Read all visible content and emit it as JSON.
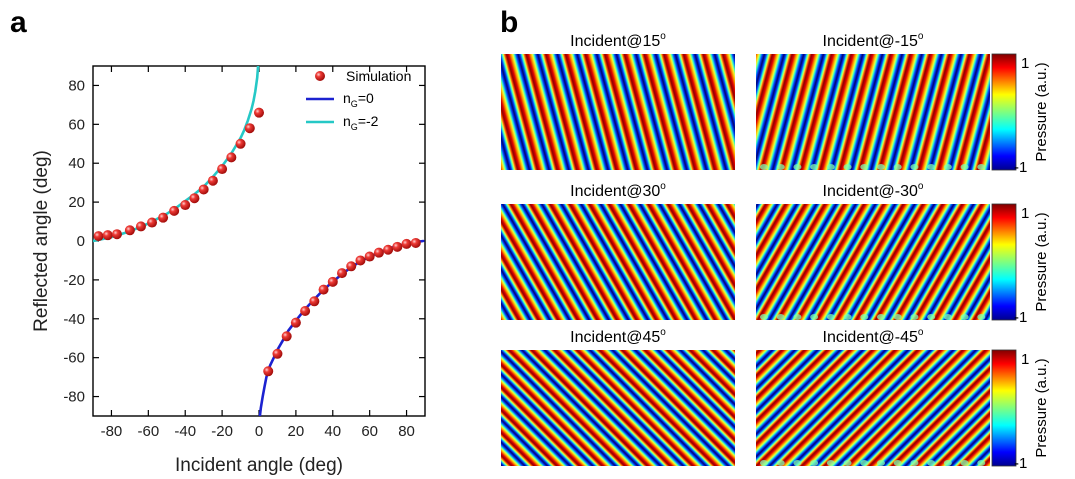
{
  "panel_a": {
    "letter": "a"
  },
  "panel_b": {
    "letter": "b"
  },
  "chart_data": [
    {
      "type": "scatter",
      "panel": "a",
      "xlabel": "Incident angle (deg)",
      "ylabel": "Reflected angle (deg)",
      "xlim": [
        -90,
        90
      ],
      "ylim": [
        -90,
        90
      ],
      "xticks": [
        -80,
        -60,
        -40,
        -20,
        0,
        20,
        40,
        60,
        80
      ],
      "yticks": [
        -80,
        -60,
        -40,
        -20,
        0,
        20,
        40,
        60,
        80
      ],
      "legend_position": "top-right",
      "legend": {
        "simulation": "Simulation",
        "n0_main": "n",
        "n0_sub": "G",
        "n0_tail": "=0",
        "nm2_main": "n",
        "nm2_sub": "G",
        "nm2_tail": "=-2"
      },
      "colors": {
        "simulation": "#e0201f",
        "ng0": "#1c22d0",
        "ngm2": "#25c8c6"
      },
      "simulation_points": [
        {
          "x": -87,
          "y": 2.5
        },
        {
          "x": -82,
          "y": 3
        },
        {
          "x": -77,
          "y": 3.5
        },
        {
          "x": -70,
          "y": 5.5
        },
        {
          "x": -64,
          "y": 7.5
        },
        {
          "x": -58,
          "y": 9.5
        },
        {
          "x": -52,
          "y": 12
        },
        {
          "x": -46,
          "y": 15.5
        },
        {
          "x": -40,
          "y": 18.5
        },
        {
          "x": -35,
          "y": 22
        },
        {
          "x": -30,
          "y": 26.5
        },
        {
          "x": -25,
          "y": 31
        },
        {
          "x": -20,
          "y": 37
        },
        {
          "x": -15,
          "y": 43
        },
        {
          "x": -10,
          "y": 50
        },
        {
          "x": -5,
          "y": 58
        },
        {
          "x": 0,
          "y": 66
        },
        {
          "x": 5,
          "y": -67
        },
        {
          "x": 10,
          "y": -58
        },
        {
          "x": 15,
          "y": -49
        },
        {
          "x": 20,
          "y": -42
        },
        {
          "x": 25,
          "y": -36
        },
        {
          "x": 30,
          "y": -31
        },
        {
          "x": 35,
          "y": -25
        },
        {
          "x": 40,
          "y": -21
        },
        {
          "x": 45,
          "y": -16.5
        },
        {
          "x": 50,
          "y": -13
        },
        {
          "x": 55,
          "y": -10
        },
        {
          "x": 60,
          "y": -8
        },
        {
          "x": 65,
          "y": -6
        },
        {
          "x": 70,
          "y": -4.5
        },
        {
          "x": 75,
          "y": -3
        },
        {
          "x": 80,
          "y": -1.5
        },
        {
          "x": 85,
          "y": -1
        }
      ],
      "series": [
        {
          "key": "ng0",
          "x": [
            0.5,
            1,
            2,
            3,
            4,
            6,
            8,
            10,
            13,
            16,
            20,
            25,
            30,
            35,
            40,
            45,
            50,
            55,
            60,
            65,
            70,
            75,
            80,
            85,
            89
          ],
          "y": [
            -90,
            -86,
            -80,
            -75,
            -70,
            -64,
            -60,
            -56,
            -51,
            -46,
            -41,
            -35,
            -30,
            -25,
            -21,
            -17,
            -13.5,
            -10.5,
            -8,
            -6,
            -4,
            -2.5,
            -1.5,
            -0.5,
            0
          ]
        },
        {
          "key": "ngm2",
          "x": [
            -90,
            -85,
            -80,
            -75,
            -70,
            -65,
            -60,
            -55,
            -50,
            -45,
            -40,
            -35,
            -30,
            -25,
            -20,
            -15,
            -10,
            -8,
            -6,
            -4,
            -3,
            -2,
            -1,
            -0.5
          ],
          "y": [
            0,
            1,
            2,
            3.5,
            5,
            7,
            9,
            11.5,
            14,
            17,
            20.5,
            24,
            28,
            33,
            38.5,
            45,
            53,
            57,
            62,
            68,
            72,
            77,
            84,
            90
          ]
        }
      ]
    },
    {
      "type": "heatmap",
      "panel": "b",
      "colorbar": {
        "max_label": "1",
        "min_label": "-1",
        "title": "Pressure (a.u.)",
        "range": [
          -1,
          1
        ]
      },
      "fields": [
        {
          "title": "Incident@15",
          "sup": "o",
          "incident": 15
        },
        {
          "title": "Incident@-15",
          "sup": "o",
          "incident": -15
        },
        {
          "title": "Incident@30",
          "sup": "o",
          "incident": 30
        },
        {
          "title": "Incident@-30",
          "sup": "o",
          "incident": -30
        },
        {
          "title": "Incident@45",
          "sup": "o",
          "incident": 45
        },
        {
          "title": "Incident@-45",
          "sup": "o",
          "incident": -45
        }
      ]
    }
  ]
}
